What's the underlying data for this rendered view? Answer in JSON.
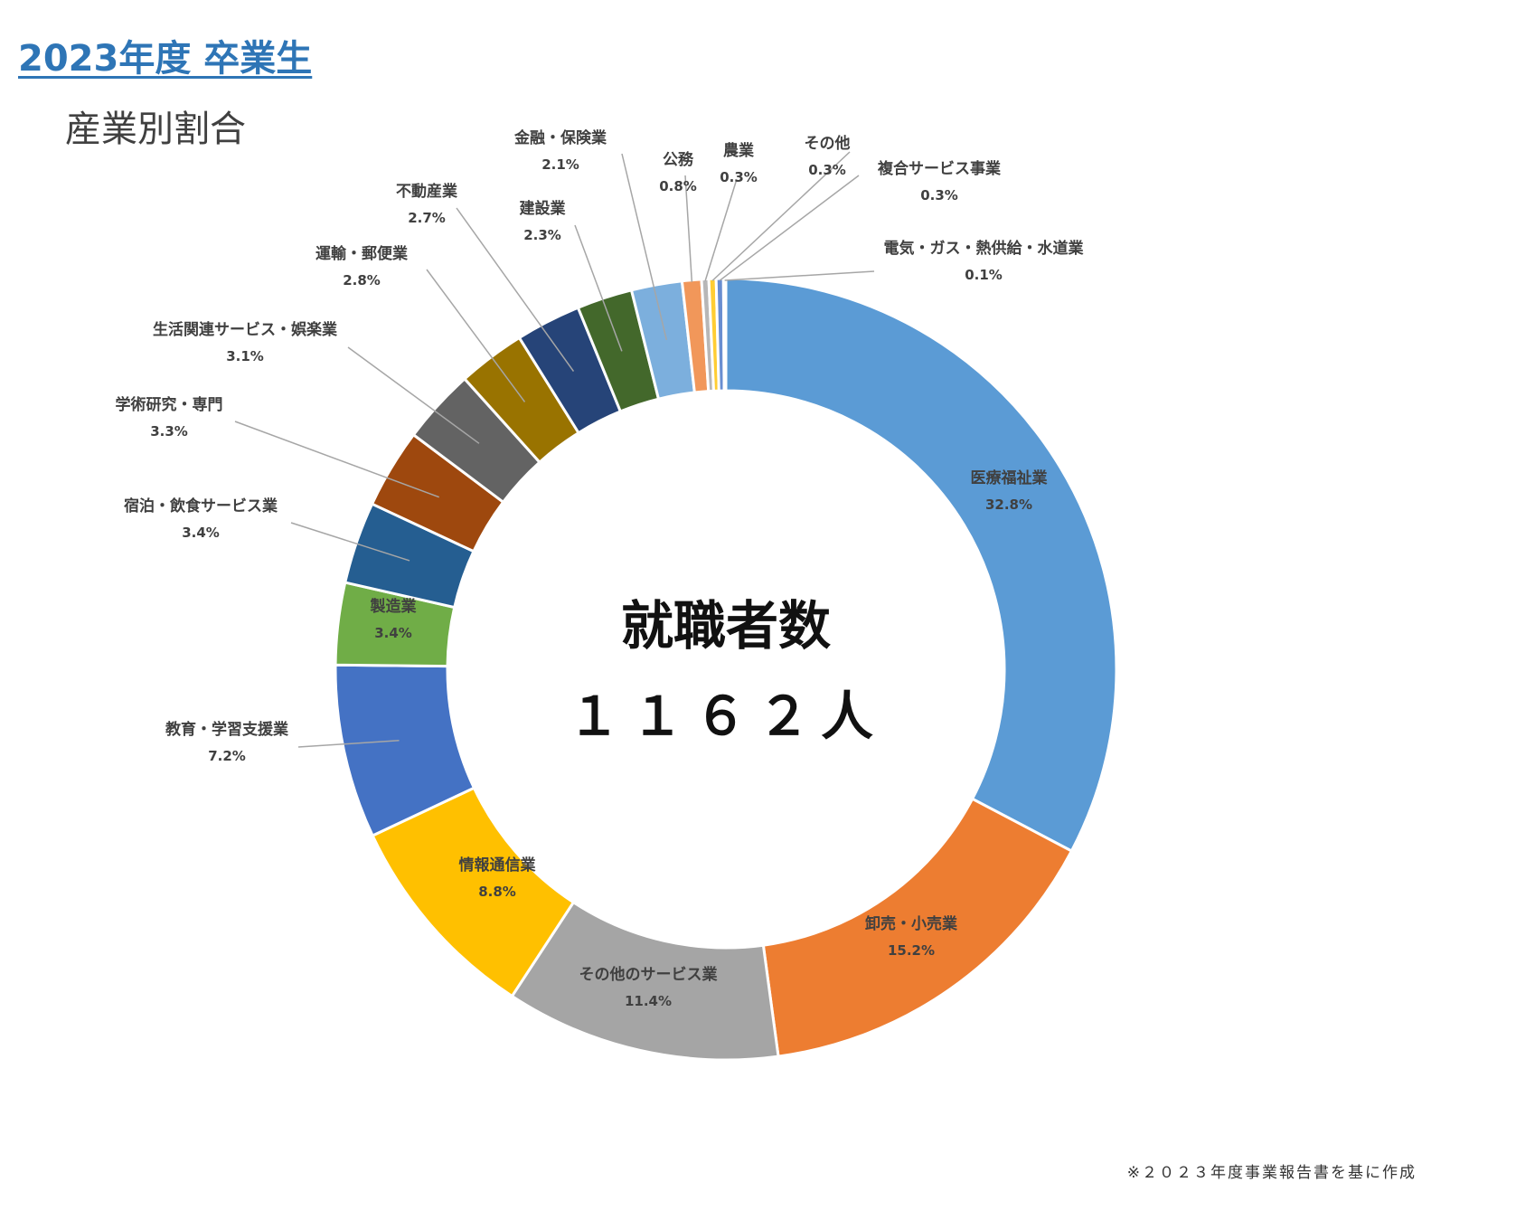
{
  "header": {
    "title": "2023年度 卒業生",
    "subtitle": "産業別割合"
  },
  "center": {
    "label": "就職者数",
    "value": "１１６２人"
  },
  "footnote": "※２０２３年度事業報告書を基に作成",
  "chart_data": {
    "type": "donut",
    "title": "",
    "unit": "%",
    "categories": [
      "医療福祉業",
      "卸売・小売業",
      "その他のサービス業",
      "情報通信業",
      "教育・学習支援業",
      "製造業",
      "宿泊・飲食サービス業",
      "学術研究・専門",
      "生活関連サービス・娯楽業",
      "運輸・郵便業",
      "不動産業",
      "建設業",
      "金融・保険業",
      "公務",
      "農業",
      "その他",
      "複合サービス事業",
      "電気・ガス・熱供給・水道業"
    ],
    "values": [
      32.8,
      15.2,
      11.4,
      8.8,
      7.2,
      3.4,
      3.4,
      3.3,
      3.1,
      2.8,
      2.7,
      2.3,
      2.1,
      0.8,
      0.3,
      0.3,
      0.3,
      0.1
    ],
    "value_labels": [
      "32.8%",
      "15.2%",
      "11.4%",
      "8.8%",
      "7.2%",
      "3.4%",
      "3.4%",
      "3.3%",
      "3.1%",
      "2.8%",
      "2.7%",
      "2.3%",
      "2.1%",
      "0.8%",
      "0.3%",
      "0.3%",
      "0.3%",
      "0.1%"
    ],
    "colors": [
      "#5B9BD5",
      "#ED7D31",
      "#A5A5A5",
      "#FFC000",
      "#4472C4",
      "#70AD47",
      "#255E91",
      "#9E480E",
      "#636363",
      "#997300",
      "#264478",
      "#43682B",
      "#7CAFDD",
      "#F1975A",
      "#B7B7B7",
      "#FFCD33",
      "#698ED0",
      "#8CC168"
    ],
    "start_angle": "12 o'clock",
    "direction": "clockwise",
    "legend": "none"
  }
}
